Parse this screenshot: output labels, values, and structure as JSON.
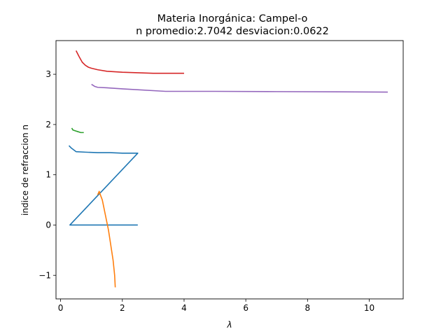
{
  "chart_data": {
    "type": "line",
    "title_line1": "Materia Inorgánica: Campel-o",
    "title_line2": "n promedio:2.7042 desviacion:0.0622",
    "xlabel": "λ",
    "ylabel": "indice de refraccion n",
    "xlim": [
      -0.15,
      11.1
    ],
    "ylim": [
      -1.47,
      3.67
    ],
    "xticks": [
      0,
      2,
      4,
      6,
      8,
      10
    ],
    "yticks": [
      -1,
      0,
      1,
      2,
      3
    ],
    "xtick_labels": [
      "0",
      "2",
      "4",
      "6",
      "8",
      "10"
    ],
    "ytick_labels": [
      "−1",
      "0",
      "1",
      "2",
      "3"
    ],
    "grid": false,
    "series": [
      {
        "color": "#1f77b4",
        "x": [
          0.27,
          0.35,
          0.5,
          0.8,
          1.2,
          1.6,
          2.0,
          2.5,
          0.3,
          1.0,
          2.5
        ],
        "y": [
          1.58,
          1.53,
          1.46,
          1.45,
          1.44,
          1.44,
          1.43,
          1.43,
          0.0,
          0.0,
          0.0
        ]
      },
      {
        "color": "#ff7f0e",
        "x": [
          1.2,
          1.25,
          1.3,
          1.35,
          1.4,
          1.45,
          1.5,
          1.55,
          1.6,
          1.65,
          1.7,
          1.75,
          1.77
        ],
        "y": [
          0.6,
          0.67,
          0.58,
          0.5,
          0.35,
          0.2,
          0.05,
          -0.1,
          -0.3,
          -0.5,
          -0.7,
          -1.0,
          -1.24
        ]
      },
      {
        "color": "#2ca02c",
        "x": [
          0.36,
          0.4,
          0.45,
          0.5,
          0.55,
          0.6,
          0.65,
          0.7,
          0.75
        ],
        "y": [
          1.93,
          1.89,
          1.88,
          1.87,
          1.86,
          1.85,
          1.84,
          1.84,
          1.84
        ]
      },
      {
        "color": "#d62728",
        "x": [
          0.5,
          0.6,
          0.7,
          0.8,
          0.9,
          1.0,
          1.2,
          1.5,
          2.0,
          2.5,
          3.0,
          3.5,
          4.0
        ],
        "y": [
          3.47,
          3.35,
          3.24,
          3.18,
          3.14,
          3.12,
          3.09,
          3.06,
          3.04,
          3.03,
          3.02,
          3.02,
          3.02
        ]
      },
      {
        "color": "#9467bd",
        "x": [
          1.0,
          1.1,
          1.2,
          1.5,
          2.0,
          3.4,
          5.0,
          7.0,
          9.0,
          10.6
        ],
        "y": [
          2.8,
          2.76,
          2.74,
          2.73,
          2.71,
          2.66,
          2.66,
          2.655,
          2.65,
          2.645
        ]
      }
    ]
  }
}
